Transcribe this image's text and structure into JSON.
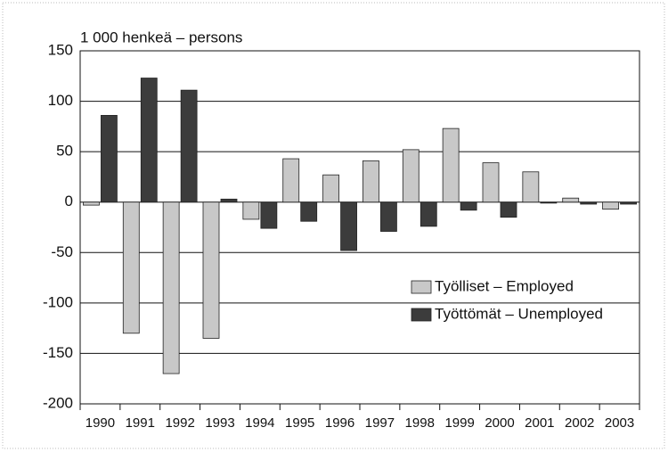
{
  "chart_data": {
    "type": "bar",
    "title": "1 000 henkeä – persons",
    "categories": [
      "1990",
      "1991",
      "1992",
      "1993",
      "1994",
      "1995",
      "1996",
      "1997",
      "1998",
      "1999",
      "2000",
      "2001",
      "2002",
      "2003"
    ],
    "series": [
      {
        "name": "Työlliset – Employed",
        "color": "#c8c8c8",
        "values": [
          -3,
          -130,
          -170,
          -135,
          -17,
          43,
          27,
          41,
          52,
          73,
          39,
          30,
          4,
          -7
        ]
      },
      {
        "name": "Työttömät – Unemployed",
        "color": "#3c3c3c",
        "values": [
          86,
          123,
          111,
          3,
          -26,
          -19,
          -48,
          -29,
          -24,
          -8,
          -15,
          -1,
          -2,
          -2
        ]
      }
    ],
    "ylim": [
      -200,
      150
    ],
    "yticks": [
      -200,
      -150,
      -100,
      -50,
      0,
      50,
      100,
      150
    ],
    "grid": true,
    "legend": "right"
  }
}
